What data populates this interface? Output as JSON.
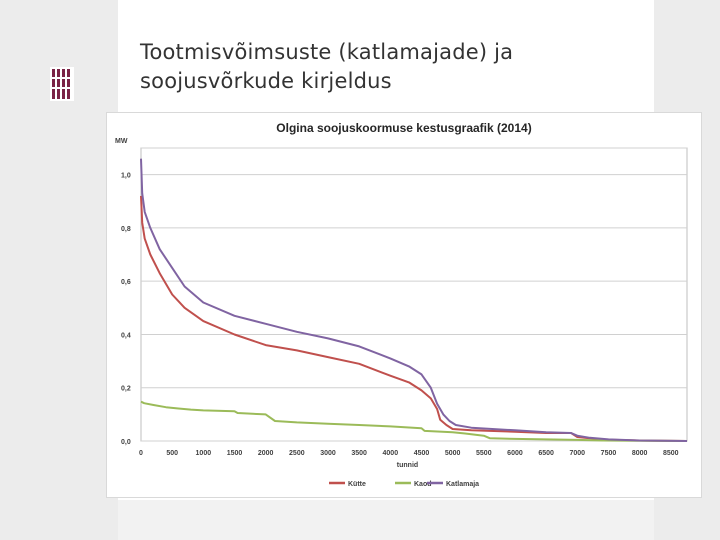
{
  "slide": {
    "title_line1": "Tootmisvõimsuste (katlamajade) ja",
    "title_line2": "soojusvõrkude kirjeldus"
  },
  "colors": {
    "band": "#ececec",
    "logo": "#7b2346"
  },
  "chart_data": {
    "type": "line",
    "title": "Olgina soojuskoormuse kestusgraafik (2014)",
    "xlabel": "tunnid",
    "ylabel": "MW",
    "xlim": [
      0,
      8760
    ],
    "ylim": [
      0,
      1.1
    ],
    "x_ticks": [
      "0",
      "500",
      "1000",
      "1500",
      "2000",
      "2500",
      "3000",
      "3500",
      "4000",
      "4500",
      "5000",
      "5500",
      "6000",
      "6500",
      "7000",
      "7500",
      "8000",
      "8500"
    ],
    "x_tick_values": [
      0,
      500,
      1000,
      1500,
      2000,
      2500,
      3000,
      3500,
      4000,
      4500,
      5000,
      5500,
      6000,
      6500,
      7000,
      7500,
      8000,
      8500
    ],
    "y_ticks": [
      "0,0",
      "0,2",
      "0,4",
      "0,6",
      "0,8",
      "1,0"
    ],
    "y_tick_values": [
      0,
      0.2,
      0.4,
      0.6,
      0.8,
      1.0
    ],
    "grid": "horizontal",
    "legend_position": "bottom",
    "series": [
      {
        "name": "Kütte",
        "color": "#c0504d",
        "x": [
          0,
          20,
          60,
          150,
          300,
          500,
          700,
          1000,
          1500,
          2000,
          2500,
          3000,
          3500,
          4000,
          4300,
          4500,
          4650,
          4750,
          4800,
          4900,
          5000,
          5300,
          6000,
          6500,
          6900,
          7000,
          7200,
          7500,
          8000,
          8760
        ],
        "y": [
          0.92,
          0.82,
          0.76,
          0.7,
          0.63,
          0.55,
          0.5,
          0.45,
          0.4,
          0.36,
          0.34,
          0.315,
          0.29,
          0.245,
          0.22,
          0.19,
          0.16,
          0.12,
          0.08,
          0.06,
          0.045,
          0.04,
          0.035,
          0.03,
          0.03,
          0.015,
          0.01,
          0.005,
          0.002,
          0.0
        ]
      },
      {
        "name": "Kaod",
        "color": "#9bbb59",
        "x": [
          0,
          50,
          200,
          400,
          600,
          800,
          1000,
          1500,
          1550,
          2000,
          2150,
          2500,
          3000,
          3500,
          4000,
          4500,
          4550,
          5000,
          5200,
          5500,
          5600,
          6000,
          6500,
          7000,
          7400,
          8760
        ],
        "y": [
          0.148,
          0.142,
          0.135,
          0.127,
          0.122,
          0.118,
          0.115,
          0.112,
          0.105,
          0.1,
          0.075,
          0.07,
          0.065,
          0.06,
          0.055,
          0.048,
          0.038,
          0.033,
          0.028,
          0.02,
          0.01,
          0.008,
          0.006,
          0.004,
          0.002,
          0.0
        ]
      },
      {
        "name": "Katlamaja",
        "color": "#8064a2",
        "x": [
          0,
          20,
          60,
          150,
          300,
          500,
          700,
          1000,
          1500,
          2000,
          2500,
          3000,
          3500,
          4000,
          4300,
          4500,
          4650,
          4750,
          4850,
          4950,
          5050,
          5300,
          6000,
          6500,
          6900,
          7000,
          7200,
          7500,
          8000,
          8760
        ],
        "y": [
          1.06,
          0.93,
          0.86,
          0.8,
          0.72,
          0.65,
          0.58,
          0.52,
          0.47,
          0.44,
          0.41,
          0.385,
          0.355,
          0.31,
          0.28,
          0.25,
          0.2,
          0.14,
          0.1,
          0.075,
          0.06,
          0.05,
          0.04,
          0.033,
          0.03,
          0.02,
          0.012,
          0.006,
          0.002,
          0.0
        ]
      }
    ]
  }
}
